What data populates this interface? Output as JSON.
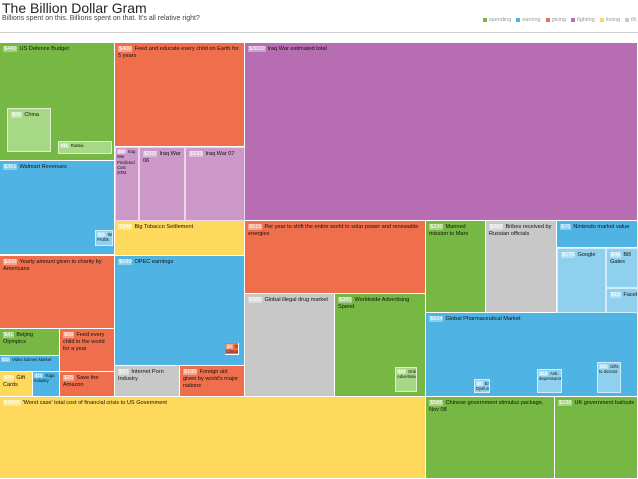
{
  "title": "The Billion Dollar Gram",
  "subtitle": "Billions spent on this. Billions spent on that. It's all relative right?",
  "legend": [
    {
      "label": "spending",
      "color": "#76b843"
    },
    {
      "label": "earning",
      "color": "#4fb4e3"
    },
    {
      "label": "giving",
      "color": "#ef6f4c"
    },
    {
      "label": "fighting",
      "color": "#b66db2"
    },
    {
      "label": "losing",
      "color": "#ffd95c"
    },
    {
      "label": "illi",
      "color": "#c8c8c8"
    }
  ],
  "chart_data": {
    "type": "treemap",
    "title": "The Billion Dollar Gram",
    "subtitle": "Billions spent on this. Billions spent on that. It's all relative right?",
    "items": [
      {
        "value": "$440",
        "label": "US Defence Budget",
        "category": "spending",
        "amount": 440
      },
      {
        "value": "$65",
        "label": "China",
        "category": "spending",
        "amount": 65
      },
      {
        "value": "$11",
        "label": "Russia",
        "category": "spending",
        "amount": 11
      },
      {
        "value": "$400",
        "label": "Feed and educate every child on Earth for 5 years",
        "category": "giving",
        "amount": 400
      },
      {
        "value": "$3000",
        "label": "Iraq War estimated total",
        "category": "fighting",
        "amount": 3000
      },
      {
        "value": "$50",
        "label": "Iraq War Predicted Cost 2003",
        "category": "fighting",
        "amount": 50
      },
      {
        "value": "$102",
        "label": "Iraq War 06",
        "category": "fighting",
        "amount": 102
      },
      {
        "value": "$133",
        "label": "Iraq War 07",
        "category": "fighting",
        "amount": 133
      },
      {
        "value": "$351",
        "label": "Walmart Revenues",
        "category": "earning",
        "amount": 351
      },
      {
        "value": "$11",
        "label": "Walmart Profits",
        "category": "earning",
        "amount": 11
      },
      {
        "value": "$246",
        "label": "Big Tobacco Settlement",
        "category": "losing",
        "amount": 246
      },
      {
        "value": "$515",
        "label": "Per year to shift the entire world to solar power and renewable energies",
        "category": "giving",
        "amount": 515
      },
      {
        "value": "$230",
        "label": "Manned mission to Mars",
        "category": "spending",
        "amount": 230
      },
      {
        "value": "$300",
        "label": "Bribes received by Russian officials",
        "category": "illicit",
        "amount": 300
      },
      {
        "value": "$76",
        "label": "Nintendo market value",
        "category": "earning",
        "amount": 76
      },
      {
        "value": "$175",
        "label": "Google",
        "category": "earning",
        "amount": 175
      },
      {
        "value": "$46",
        "label": "Bill Gates",
        "category": "earning",
        "amount": 46
      },
      {
        "value": "$15",
        "label": "Facebook",
        "category": "earning",
        "amount": 15
      },
      {
        "value": "$300",
        "label": "Yearly amount given to charity by Americans",
        "category": "giving",
        "amount": 300
      },
      {
        "value": "$590",
        "label": "OPEC earnings",
        "category": "earning",
        "amount": 590
      },
      {
        "value": "$3",
        "label": "OPEC Climate Change Fund",
        "category": "giving",
        "amount": 3
      },
      {
        "value": "$300",
        "label": "Global illegal drug market",
        "category": "illicit",
        "amount": 300
      },
      {
        "value": "$385",
        "label": "Worldwide Advertising Spend",
        "category": "spending",
        "amount": 385
      },
      {
        "value": "$20",
        "label": "Online Advertising",
        "category": "spending",
        "amount": 20
      },
      {
        "value": "$634",
        "label": "Global Pharmaceutical Market",
        "category": "earning",
        "amount": 634
      },
      {
        "value": "$4",
        "label": "Erectile Dysfunction",
        "category": "earning",
        "amount": 4
      },
      {
        "value": "$13",
        "label": "Anti-depressants",
        "category": "earning",
        "amount": 13
      },
      {
        "value": "$21",
        "label": "Gifts to doctors",
        "category": "earning",
        "amount": 21
      },
      {
        "value": "$41",
        "label": "Beijing Olympics",
        "category": "spending",
        "amount": 41
      },
      {
        "value": "$68",
        "label": "Feed every child in the world for a year",
        "category": "giving",
        "amount": 68
      },
      {
        "value": "$32",
        "label": "Video Games Market",
        "category": "earning",
        "amount": 32
      },
      {
        "value": "$25",
        "label": "Gift Cards",
        "category": "losing",
        "amount": 25
      },
      {
        "value": "$18",
        "label": "Yoga Industry",
        "category": "earning",
        "amount": 18
      },
      {
        "value": "$25",
        "label": "Save the Amazon",
        "category": "giving",
        "amount": 25
      },
      {
        "value": "$97",
        "label": "Internet Porn Industry",
        "category": "illicit",
        "amount": 97
      },
      {
        "value": "$100",
        "label": "Foreign aid given by world's major nations",
        "category": "giving",
        "amount": 100
      },
      {
        "value": "$7000",
        "label": "'Worst case' total cost of financial crisis to US Government",
        "category": "losing",
        "amount": 7000
      },
      {
        "value": "$586",
        "label": "Chinese government stimulus package, Nov 08",
        "category": "spending",
        "amount": 586
      },
      {
        "value": "$236",
        "label": "UK government bailouts",
        "category": "spending",
        "amount": 236
      }
    ]
  }
}
